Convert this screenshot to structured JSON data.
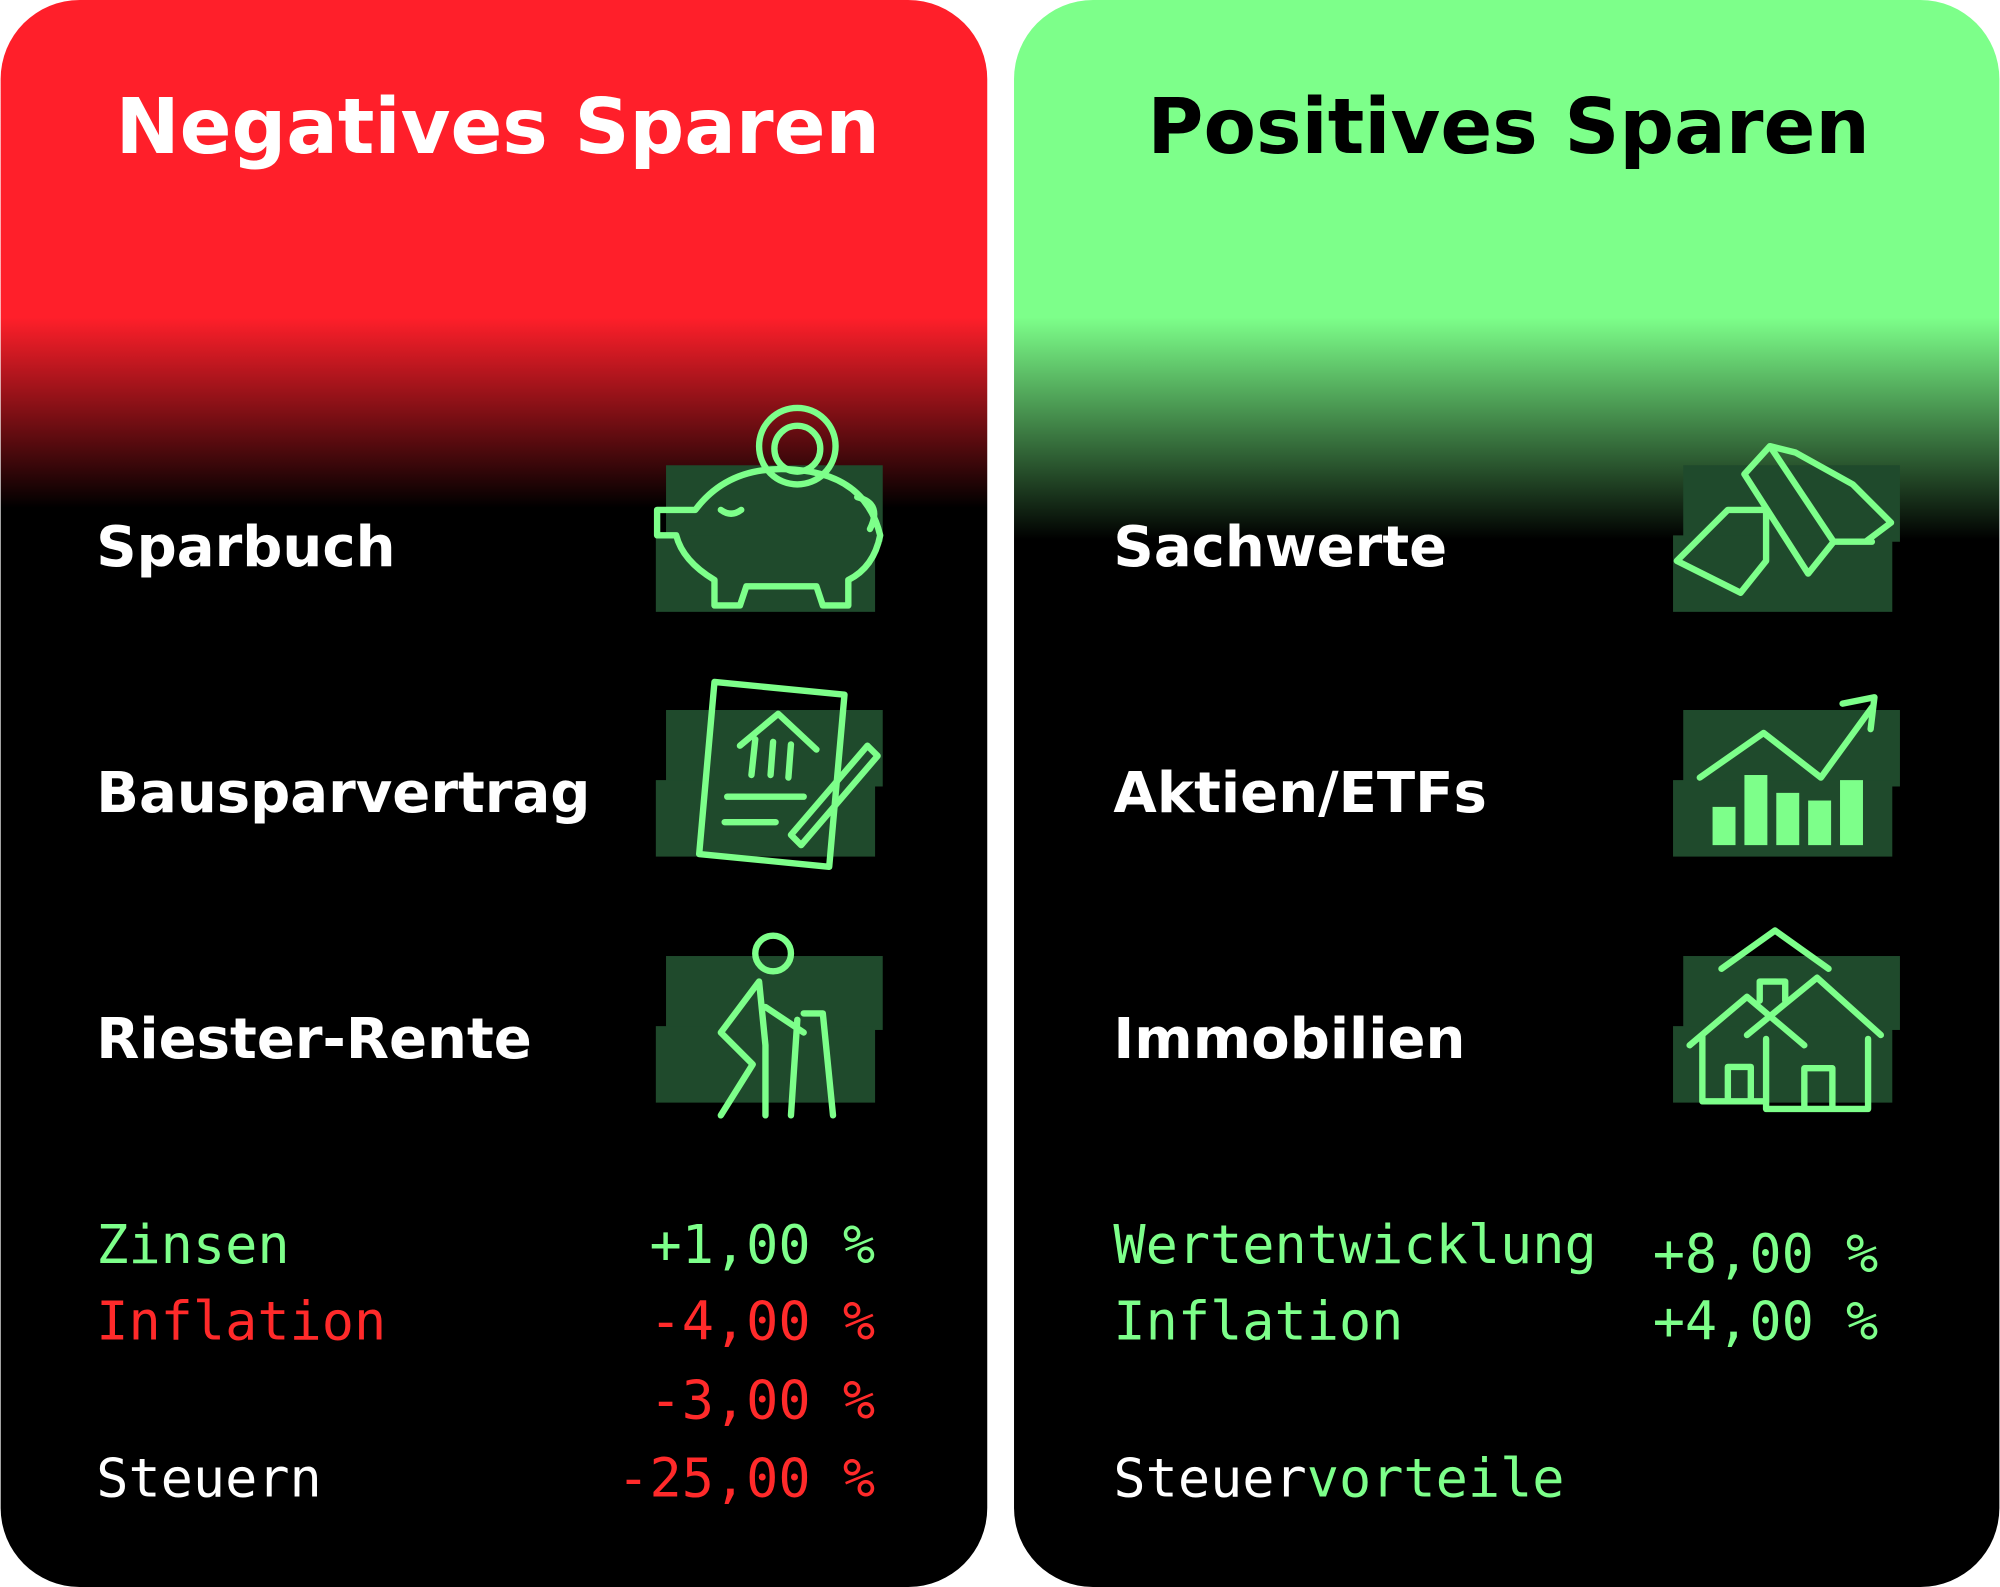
{
  "left": {
    "title": "Negatives Sparen",
    "items": [
      "Sparbuch",
      "Bausparvertrag",
      "Riester-Rente"
    ],
    "rows": [
      {
        "label": "Zinsen",
        "value": "+1,00 %"
      },
      {
        "label": "Inflation",
        "value": "-4,00 %"
      }
    ],
    "result": "-3,00 %",
    "tax": {
      "label": "Steuern",
      "value": "-25,00 %"
    }
  },
  "right": {
    "title": "Positives Sparen",
    "items": [
      "Sachwerte",
      "Aktien/ETFs",
      "Immobilien"
    ],
    "rows": [
      {
        "label": "Wertentwicklung",
        "value": "+8,00 %"
      },
      {
        "label": "Inflation",
        "value": "+4,00 %"
      }
    ],
    "tax": {
      "label": "Steuer",
      "highlight": "vorteile"
    }
  }
}
